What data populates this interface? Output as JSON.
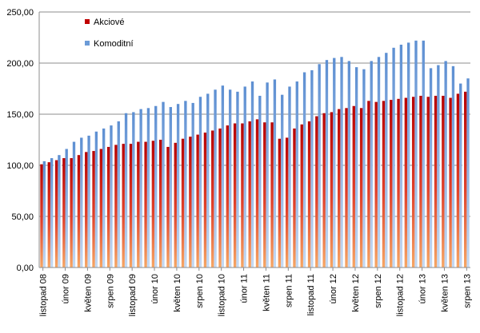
{
  "chart_data": {
    "type": "bar",
    "title": "",
    "xlabel": "",
    "ylabel": "",
    "ylim": [
      0,
      250
    ],
    "yticks": [
      "0,00",
      "50,00",
      "100,00",
      "150,00",
      "200,00",
      "250,00"
    ],
    "grid": "horizontal dashed",
    "legend_position": "top-left",
    "x_tick_labels": [
      "listopad 08",
      "únor 09",
      "květen 09",
      "srpen 09",
      "listopad 09",
      "únor 10",
      "květen 10",
      "srpen 10",
      "listopad 10",
      "únor 11",
      "květen 11",
      "srpen 11",
      "listopad 11",
      "únor 12",
      "květen 12",
      "srpen 12",
      "listopad 12",
      "únor 13",
      "květen 13",
      "srpen 13"
    ],
    "categories": [
      "2008-11",
      "2008-12",
      "2009-01",
      "2009-02",
      "2009-03",
      "2009-04",
      "2009-05",
      "2009-06",
      "2009-07",
      "2009-08",
      "2009-09",
      "2009-10",
      "2009-11",
      "2009-12",
      "2010-01",
      "2010-02",
      "2010-03",
      "2010-04",
      "2010-05",
      "2010-06",
      "2010-07",
      "2010-08",
      "2010-09",
      "2010-10",
      "2010-11",
      "2010-12",
      "2011-01",
      "2011-02",
      "2011-03",
      "2011-04",
      "2011-05",
      "2011-06",
      "2011-07",
      "2011-08",
      "2011-09",
      "2011-10",
      "2011-11",
      "2011-12",
      "2012-01",
      "2012-02",
      "2012-03",
      "2012-04",
      "2012-05",
      "2012-06",
      "2012-07",
      "2012-08",
      "2012-09",
      "2012-10",
      "2012-11",
      "2012-12",
      "2013-01",
      "2013-02",
      "2013-03",
      "2013-04",
      "2013-05",
      "2013-06",
      "2013-07",
      "2013-08"
    ],
    "series": [
      {
        "name": "Akciové",
        "color": "#c00000",
        "values": [
          101,
          103,
          105,
          107,
          107,
          110,
          113,
          114,
          116,
          118,
          120,
          121,
          121,
          123,
          123,
          124,
          125,
          118,
          122,
          126,
          128,
          130,
          132,
          134,
          136,
          139,
          141,
          141,
          143,
          145,
          142,
          142,
          126,
          127,
          136,
          140,
          143,
          148,
          151,
          152,
          155,
          156,
          158,
          156,
          163,
          162,
          163,
          164,
          165,
          166,
          167,
          168,
          167,
          168,
          168,
          166,
          170,
          172
        ]
      },
      {
        "name": "Komoditní",
        "color": "#6b9bd7",
        "values": [
          104,
          107,
          110,
          116,
          123,
          127,
          129,
          133,
          136,
          139,
          143,
          151,
          152,
          155,
          156,
          158,
          162,
          157,
          160,
          163,
          161,
          167,
          170,
          174,
          178,
          174,
          172,
          177,
          182,
          168,
          181,
          184,
          169,
          177,
          182,
          191,
          193,
          199,
          203,
          205,
          206,
          202,
          196,
          194,
          202,
          206,
          210,
          215,
          218,
          220,
          222,
          222,
          195,
          198,
          202,
          197,
          180,
          185
        ]
      }
    ]
  }
}
